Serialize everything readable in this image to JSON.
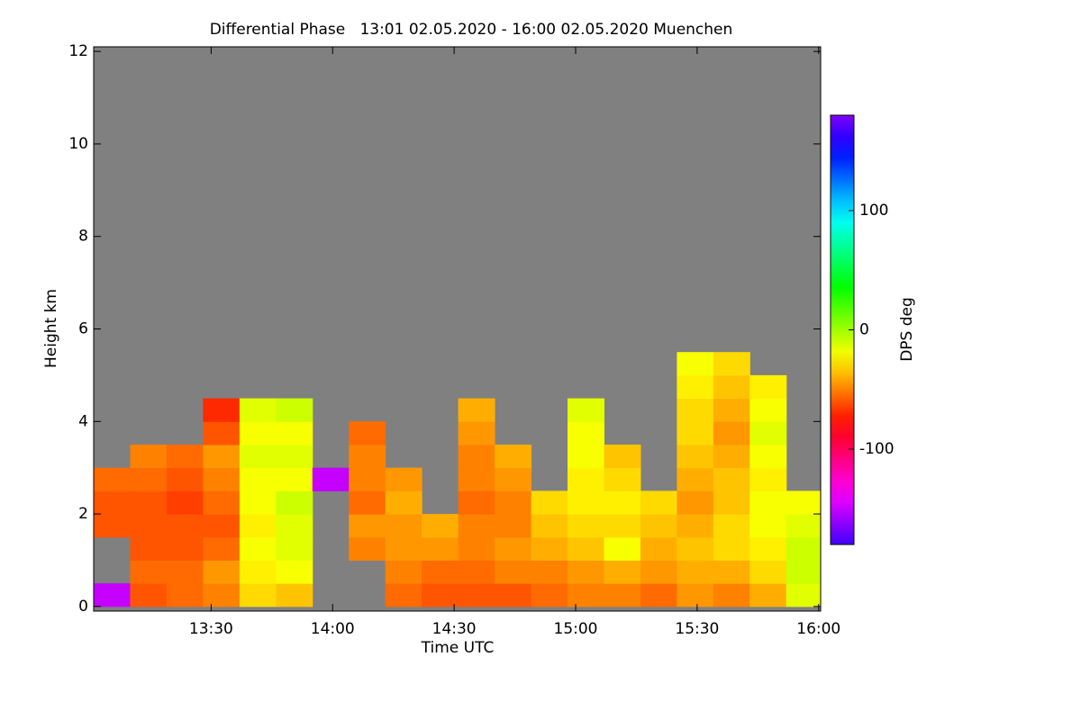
{
  "chart_data": {
    "type": "heatmap",
    "title": "Differential Phase   13:01 02.05.2020 - 16:00 02.05.2020 Muenchen",
    "x_label": "Time UTC",
    "y_label": "Height km",
    "colorbar_label": "DPS deg",
    "xlim": [
      781,
      960.5
    ],
    "xticks": [
      {
        "value": 810,
        "label": "13:30"
      },
      {
        "value": 840,
        "label": "14:00"
      },
      {
        "value": 870,
        "label": "14:30"
      },
      {
        "value": 900,
        "label": "15:00"
      },
      {
        "value": 930,
        "label": "15:30"
      },
      {
        "value": 960,
        "label": "16:00"
      }
    ],
    "ylim": [
      -0.1,
      12.1
    ],
    "yticks": [
      0,
      2,
      4,
      6,
      8,
      10,
      12
    ],
    "clim": [
      -180,
      180
    ],
    "cticks": [
      -100,
      0,
      100
    ],
    "x": [
      785.5,
      794.5,
      803.5,
      812.5,
      821.5,
      830.5,
      839.5,
      848.5,
      857.5,
      866.5,
      875.5,
      884.5,
      893.5,
      902.5,
      911.5,
      920.5,
      929.5,
      938.5,
      947.5,
      956.5
    ],
    "y": [
      0.25,
      0.75,
      1.25,
      1.75,
      2.25,
      2.75,
      3.25,
      3.75,
      4.25,
      4.75,
      5.25
    ],
    "z": [
      [
        -150,
        null,
        null,
        -60,
        -60,
        -55,
        null,
        null,
        null,
        null,
        null
      ],
      [
        -60,
        -55,
        -60,
        -60,
        -60,
        -55,
        -50,
        null,
        null,
        null,
        null
      ],
      [
        -55,
        -55,
        -60,
        -60,
        -65,
        -60,
        -55,
        null,
        null,
        null,
        null
      ],
      [
        -50,
        -45,
        -55,
        -60,
        -55,
        -50,
        -45,
        -60,
        -70,
        null,
        null
      ],
      [
        -30,
        -25,
        -20,
        -25,
        -20,
        -20,
        -15,
        -20,
        -15,
        null,
        null
      ],
      [
        -35,
        -20,
        -15,
        -15,
        -10,
        -20,
        -15,
        -20,
        -10,
        null,
        null
      ],
      [
        null,
        null,
        null,
        null,
        null,
        -150,
        null,
        null,
        null,
        null,
        null
      ],
      [
        null,
        null,
        -50,
        -45,
        -55,
        -50,
        -50,
        -55,
        null,
        null,
        null
      ],
      [
        -55,
        -50,
        -45,
        -45,
        -40,
        -45,
        null,
        null,
        null,
        null,
        null
      ],
      [
        -60,
        -55,
        -45,
        -40,
        null,
        null,
        null,
        null,
        null,
        null,
        null
      ],
      [
        -60,
        -55,
        -50,
        -50,
        -55,
        -50,
        -50,
        -45,
        -40,
        null,
        null
      ],
      [
        -60,
        -50,
        -45,
        -50,
        -50,
        -45,
        -40,
        null,
        null,
        null,
        null
      ],
      [
        -55,
        -50,
        -40,
        -35,
        -30,
        null,
        null,
        null,
        null,
        null,
        null
      ],
      [
        -50,
        -45,
        -35,
        -30,
        -25,
        -25,
        -20,
        -20,
        -15,
        null,
        null
      ],
      [
        -50,
        -40,
        -20,
        -30,
        -25,
        -30,
        -35,
        null,
        null,
        null,
        null
      ],
      [
        -55,
        -45,
        -40,
        -35,
        -30,
        null,
        null,
        null,
        null,
        null,
        null
      ],
      [
        -45,
        -40,
        -35,
        -40,
        -45,
        -40,
        -35,
        -30,
        -30,
        -25,
        -20
      ],
      [
        -50,
        -40,
        -30,
        -30,
        -35,
        -35,
        -40,
        -45,
        -40,
        -35,
        -30
      ],
      [
        -40,
        -30,
        -25,
        -20,
        -20,
        -25,
        -20,
        -15,
        -20,
        -25,
        null
      ],
      [
        -15,
        -10,
        -10,
        -15,
        -20,
        null,
        null,
        null,
        null,
        null,
        null
      ]
    ]
  }
}
